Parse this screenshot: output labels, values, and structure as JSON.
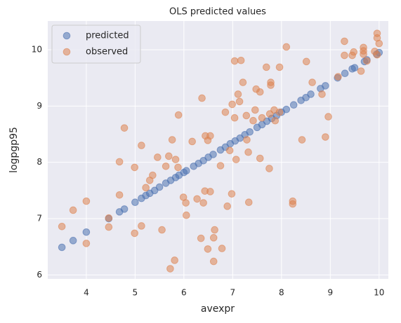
{
  "chart_data": {
    "type": "scatter",
    "title": "OLS predicted values",
    "x_label": "avexpr",
    "y_label": "logpgp95",
    "xlim": [
      3.21,
      10.19
    ],
    "ylim": [
      5.93,
      10.51
    ],
    "xticks": [
      4,
      5,
      6,
      7,
      8,
      9,
      10
    ],
    "yticks": [
      6,
      7,
      8,
      9,
      10
    ],
    "grid": true,
    "legend": "upper left",
    "series": [
      {
        "name": "predicted",
        "color": "#4c72b0",
        "x": [
          3.5,
          3.73,
          4.0,
          4.46,
          4.68,
          4.78,
          5.0,
          5.13,
          5.22,
          5.3,
          5.4,
          5.5,
          5.63,
          5.73,
          5.83,
          5.9,
          6.0,
          6.05,
          6.2,
          6.3,
          6.4,
          6.5,
          6.6,
          6.75,
          6.85,
          6.95,
          7.05,
          7.15,
          7.25,
          7.35,
          7.5,
          7.6,
          7.7,
          7.8,
          7.9,
          8.0,
          8.1,
          8.25,
          8.4,
          8.5,
          8.6,
          8.8,
          8.9,
          9.15,
          9.3,
          9.45,
          9.5,
          9.7,
          9.75,
          9.95,
          10.0
        ],
        "values": [
          6.49,
          6.61,
          6.76,
          7.0,
          7.12,
          7.17,
          7.29,
          7.36,
          7.41,
          7.45,
          7.5,
          7.56,
          7.63,
          7.68,
          7.73,
          7.77,
          7.82,
          7.85,
          7.93,
          7.98,
          8.03,
          8.09,
          8.14,
          8.22,
          8.27,
          8.33,
          8.38,
          8.43,
          8.49,
          8.54,
          8.62,
          8.67,
          8.73,
          8.78,
          8.83,
          8.89,
          8.94,
          9.02,
          9.1,
          9.15,
          9.21,
          9.31,
          9.36,
          9.5,
          9.58,
          9.66,
          9.68,
          9.79,
          9.82,
          9.92,
          9.95
        ]
      },
      {
        "name": "observed",
        "color": "#dd8452",
        "x": [
          3.5,
          3.73,
          4.0,
          4.0,
          4.46,
          4.46,
          4.68,
          4.68,
          4.78,
          4.99,
          4.99,
          5.13,
          5.13,
          5.22,
          5.3,
          5.36,
          5.46,
          5.55,
          5.63,
          5.69,
          5.72,
          5.76,
          5.81,
          5.83,
          5.89,
          5.88,
          5.99,
          6.05,
          6.04,
          6.17,
          6.27,
          6.37,
          6.4,
          6.43,
          6.44,
          6.49,
          6.49,
          6.35,
          6.54,
          6.54,
          6.61,
          6.63,
          6.61,
          6.75,
          6.78,
          6.85,
          6.89,
          6.94,
          6.98,
          6.99,
          7.04,
          7.04,
          7.07,
          7.11,
          7.14,
          7.17,
          7.21,
          7.28,
          7.29,
          7.33,
          7.32,
          7.42,
          7.46,
          7.48,
          7.56,
          7.56,
          7.6,
          7.69,
          7.75,
          7.76,
          7.78,
          7.78,
          7.85,
          7.87,
          7.96,
          7.96,
          8.1,
          8.23,
          8.23,
          8.42,
          8.51,
          8.63,
          8.83,
          8.9,
          8.96,
          9.16,
          9.29,
          9.29,
          9.45,
          9.48,
          9.63,
          9.68,
          9.68,
          9.68,
          9.75,
          9.96,
          9.96,
          10.0,
          9.96,
          9.91
        ],
        "values": [
          6.86,
          7.15,
          7.31,
          6.56,
          6.85,
          7.01,
          7.42,
          8.01,
          8.61,
          7.91,
          6.74,
          8.3,
          6.87,
          7.55,
          7.68,
          7.77,
          8.09,
          6.8,
          7.93,
          8.11,
          6.11,
          8.4,
          6.26,
          8.05,
          8.84,
          7.91,
          7.38,
          7.06,
          7.28,
          8.37,
          7.35,
          9.14,
          7.28,
          7.49,
          8.47,
          8.39,
          6.46,
          6.65,
          8.47,
          7.48,
          6.24,
          6.8,
          6.66,
          7.94,
          6.47,
          8.89,
          7.22,
          8.21,
          7.44,
          9.03,
          9.8,
          8.79,
          8.05,
          9.21,
          9.08,
          9.81,
          9.42,
          8.83,
          8.4,
          7.29,
          8.18,
          8.74,
          8.93,
          9.3,
          9.25,
          8.07,
          8.79,
          9.69,
          7.89,
          8.86,
          9.37,
          9.42,
          8.93,
          8.74,
          9.69,
          8.89,
          10.05,
          7.31,
          7.26,
          8.4,
          9.79,
          9.42,
          9.21,
          8.45,
          8.81,
          9.52,
          10.15,
          9.9,
          9.9,
          9.96,
          9.62,
          10.04,
          9.98,
          9.92,
          9.8,
          10.29,
          10.21,
          10.11,
          9.91,
          9.97
        ]
      }
    ]
  }
}
